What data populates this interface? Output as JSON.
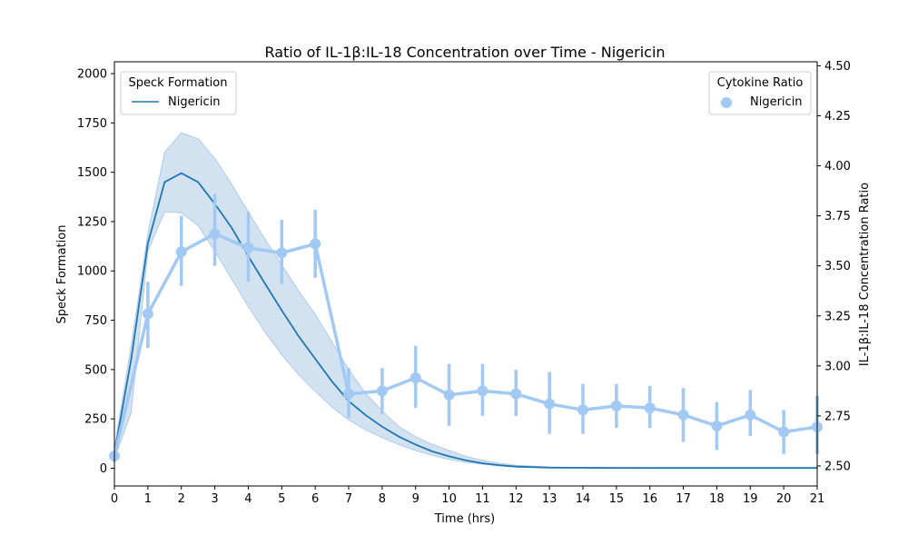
{
  "chart_data": {
    "type": "line",
    "title": "Ratio of IL-1β:IL-18 Concentration over Time - Nigericin",
    "xlabel": "Time (hrs)",
    "ylabel": "Speck Formation",
    "y2label": "IL-1β:IL-18 Concentration Ratio",
    "xlim": [
      0,
      21
    ],
    "ylim": [
      -90,
      2060
    ],
    "y2lim": [
      2.4,
      4.52
    ],
    "x_ticks": [
      "0",
      "1",
      "2",
      "3",
      "4",
      "5",
      "6",
      "7",
      "8",
      "9",
      "10",
      "11",
      "12",
      "13",
      "14",
      "15",
      "16",
      "17",
      "18",
      "19",
      "20",
      "21"
    ],
    "y_ticks": [
      "0",
      "250",
      "500",
      "750",
      "1000",
      "1250",
      "1500",
      "1750",
      "2000"
    ],
    "y2_ticks": [
      "2.50",
      "2.75",
      "3.00",
      "3.25",
      "3.50",
      "3.75",
      "4.00",
      "4.25",
      "4.50"
    ],
    "colors": {
      "speck": "#1f77b4",
      "ratio": "#a1c9f4",
      "band": "#aecbe6"
    },
    "legends": [
      {
        "title": "Speck Formation",
        "position": "upper-left",
        "label": "Nigericin"
      },
      {
        "title": "Cytokine Ratio",
        "position": "upper-right",
        "label": "Nigericin"
      }
    ],
    "series": [
      {
        "name": "Nigericin",
        "legend": "Speck Formation",
        "axis": "left",
        "kind": "line-with-band",
        "x": [
          0,
          0.5,
          1,
          1.5,
          2,
          2.5,
          3,
          3.5,
          4,
          4.5,
          5,
          5.5,
          6,
          6.5,
          7,
          7.5,
          8,
          8.5,
          9,
          9.5,
          10,
          10.5,
          11,
          11.5,
          12,
          13,
          14,
          15,
          16,
          17,
          18,
          19,
          20,
          21
        ],
        "y": [
          75,
          550,
          1140,
          1450,
          1495,
          1450,
          1340,
          1220,
          1075,
          935,
          800,
          670,
          555,
          440,
          340,
          270,
          210,
          160,
          120,
          85,
          60,
          40,
          25,
          15,
          8,
          3,
          2,
          1,
          1,
          1,
          1,
          1,
          1,
          1
        ],
        "band_low": [
          50,
          280,
          1100,
          1300,
          1295,
          1230,
          1100,
          960,
          820,
          690,
          575,
          475,
          390,
          310,
          245,
          195,
          155,
          120,
          90,
          65,
          45,
          30,
          20,
          12,
          6,
          2,
          1,
          0,
          0,
          0,
          0,
          0,
          0,
          0
        ],
        "band_high": [
          100,
          620,
          1190,
          1600,
          1700,
          1670,
          1570,
          1440,
          1300,
          1160,
          1030,
          900,
          780,
          640,
          500,
          380,
          290,
          210,
          160,
          120,
          90,
          60,
          40,
          25,
          15,
          6,
          4,
          3,
          2,
          2,
          2,
          2,
          2,
          2
        ]
      },
      {
        "name": "Nigericin",
        "legend": "Cytokine Ratio",
        "axis": "right",
        "kind": "pointplot",
        "x": [
          0,
          1,
          2,
          3,
          4,
          5,
          6,
          7,
          8,
          9,
          10,
          11,
          12,
          13,
          14,
          15,
          16,
          17,
          18,
          19,
          20,
          21
        ],
        "y": [
          2.55,
          3.26,
          3.57,
          3.66,
          3.59,
          3.565,
          3.61,
          2.86,
          2.875,
          2.94,
          2.855,
          2.875,
          2.86,
          2.81,
          2.78,
          2.8,
          2.79,
          2.755,
          2.7,
          2.755,
          2.67,
          2.695
        ],
        "err_low": [
          2.52,
          3.09,
          3.4,
          3.5,
          3.42,
          3.41,
          3.44,
          2.74,
          2.76,
          2.79,
          2.7,
          2.75,
          2.75,
          2.66,
          2.66,
          2.69,
          2.69,
          2.62,
          2.58,
          2.65,
          2.56,
          2.56
        ],
        "err_high": [
          2.57,
          3.42,
          3.75,
          3.86,
          3.77,
          3.73,
          3.78,
          2.99,
          2.99,
          3.1,
          3.01,
          3.01,
          2.98,
          2.97,
          2.91,
          2.91,
          2.9,
          2.89,
          2.82,
          2.88,
          2.78,
          2.85
        ]
      }
    ]
  }
}
